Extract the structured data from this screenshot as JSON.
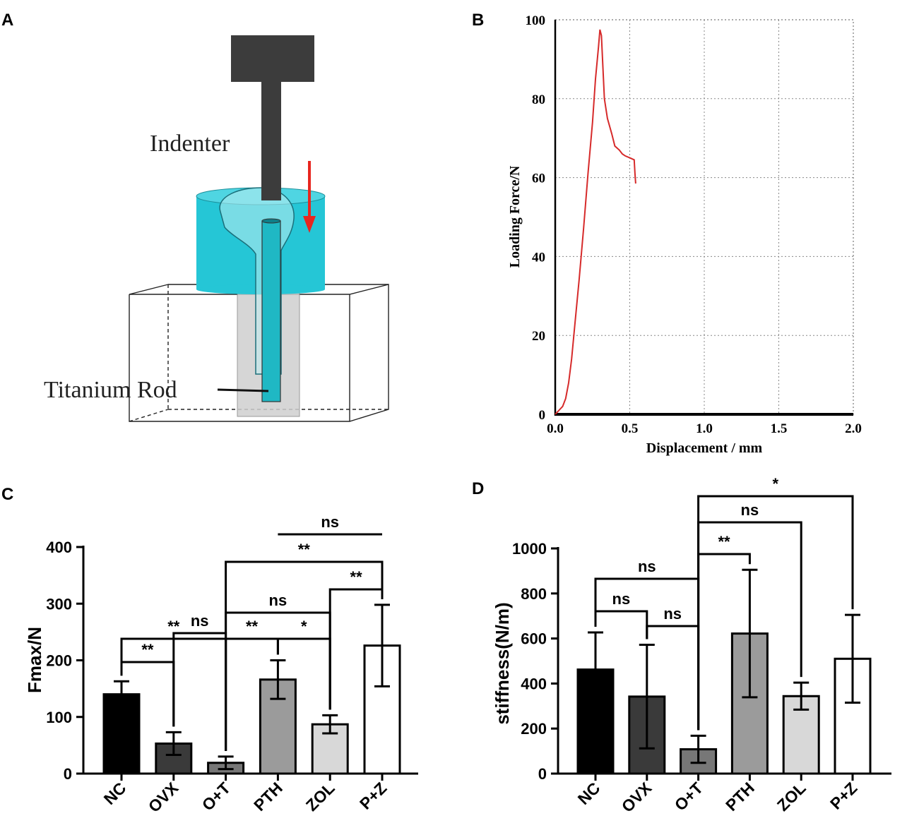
{
  "panels": {
    "a": {
      "letter": "A",
      "indenter_label": "Indenter",
      "rod_label": "Titanium Rod",
      "colors": {
        "cylinder": "#25c6d6",
        "indenter": "#3c3c3c",
        "arrow": "#e8261f"
      }
    },
    "b": {
      "letter": "B"
    },
    "c": {
      "letter": "C"
    },
    "d": {
      "letter": "D"
    }
  },
  "chart_data": [
    {
      "id": "B",
      "type": "line",
      "title": "",
      "xlabel": "Displacement / mm",
      "ylabel": "Loading Force/N",
      "xlim": [
        0,
        2.0
      ],
      "ylim": [
        0,
        100
      ],
      "xticks": [
        0.0,
        0.5,
        1.0,
        1.5,
        2.0
      ],
      "xtick_labels": [
        "0.0",
        "0.5",
        "1.0",
        "1.5",
        "2.0"
      ],
      "yticks": [
        0,
        20,
        40,
        60,
        80,
        100
      ],
      "ytick_labels": [
        "0",
        "20",
        "40",
        "60",
        "80",
        "100"
      ],
      "grid": true,
      "line_color": "#d62a2a",
      "series": [
        {
          "name": "Loading curve",
          "x": [
            0.0,
            0.02,
            0.05,
            0.07,
            0.09,
            0.11,
            0.13,
            0.16,
            0.19,
            0.22,
            0.25,
            0.27,
            0.29,
            0.3,
            0.31,
            0.32,
            0.33,
            0.35,
            0.38,
            0.4,
            0.43,
            0.45,
            0.47,
            0.5,
            0.53,
            0.535,
            0.54
          ],
          "y": [
            0.0,
            0.8,
            2.0,
            4.0,
            8.0,
            14.0,
            22.0,
            34.0,
            47.0,
            61.0,
            74.0,
            85.0,
            93.0,
            97.5,
            96.0,
            88.0,
            80.0,
            75.0,
            71.0,
            68.0,
            67.0,
            66.0,
            65.5,
            65.0,
            64.5,
            61.0,
            58.5
          ]
        }
      ]
    },
    {
      "id": "C",
      "type": "bar",
      "title": "",
      "xlabel": "",
      "ylabel": "Fmax/N",
      "ylim": [
        0,
        400
      ],
      "yticks": [
        0,
        100,
        200,
        300,
        400
      ],
      "ytick_labels": [
        "0",
        "100",
        "200",
        "300",
        "400"
      ],
      "categories": [
        "NC",
        "OVX",
        "O+T",
        "PTH",
        "ZOL",
        "P+Z"
      ],
      "values": [
        140,
        53,
        19,
        166,
        87,
        226
      ],
      "errors": [
        23,
        20,
        11,
        34,
        16,
        72
      ],
      "bar_colors": [
        "#000000",
        "#3a3a3a",
        "#777777",
        "#9b9b9b",
        "#d8d8d8",
        "#ffffff"
      ],
      "significance": [
        {
          "from": 0,
          "to": 1,
          "label": "**"
        },
        {
          "from": 1,
          "to": 2,
          "label": "ns"
        },
        {
          "from": 0,
          "to": 2,
          "label": "**"
        },
        {
          "from": 2,
          "to": 3,
          "label": "**"
        },
        {
          "from": 3,
          "to": 4,
          "label": "*"
        },
        {
          "from": 2,
          "to": 4,
          "label": "ns"
        },
        {
          "from": 4,
          "to": 5,
          "label": "**"
        },
        {
          "from": 2,
          "to": 5,
          "label": "**"
        },
        {
          "from": 3,
          "to": 5,
          "label": "ns"
        }
      ]
    },
    {
      "id": "D",
      "type": "bar",
      "title": "",
      "xlabel": "",
      "ylabel": "stiffness(N/m)",
      "ylim": [
        0,
        1000
      ],
      "yticks": [
        0,
        200,
        400,
        600,
        800,
        1000
      ],
      "ytick_labels": [
        "0",
        "200",
        "400",
        "600",
        "800",
        "1000"
      ],
      "categories": [
        "NC",
        "OVX",
        "O+T",
        "PTH",
        "ZOL",
        "P+Z"
      ],
      "values": [
        462,
        342,
        108,
        622,
        344,
        510
      ],
      "errors": [
        165,
        230,
        60,
        283,
        60,
        195
      ],
      "bar_colors": [
        "#000000",
        "#3a3a3a",
        "#777777",
        "#9b9b9b",
        "#d8d8d8",
        "#ffffff"
      ],
      "significance": [
        {
          "from": 0,
          "to": 1,
          "label": "ns"
        },
        {
          "from": 1,
          "to": 2,
          "label": "ns"
        },
        {
          "from": 0,
          "to": 2,
          "label": "ns"
        },
        {
          "from": 2,
          "to": 3,
          "label": "**"
        },
        {
          "from": 2,
          "to": 4,
          "label": "ns"
        },
        {
          "from": 2,
          "to": 5,
          "label": "*"
        }
      ]
    }
  ]
}
